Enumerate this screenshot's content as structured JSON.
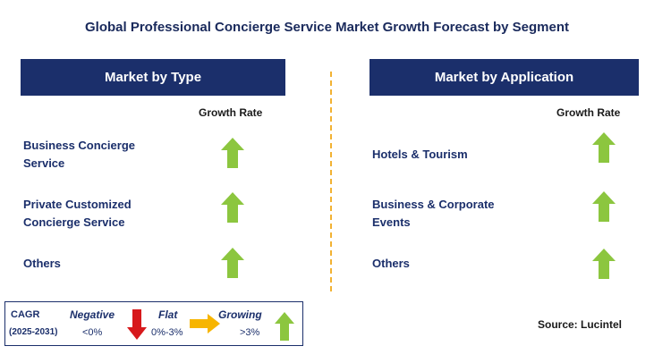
{
  "title": "Global Professional Concierge Service Market Growth Forecast by Segment",
  "left_panel": {
    "header": "Market by Type",
    "column_header": "Growth Rate",
    "rows": [
      {
        "label_line1": "Business Concierge",
        "label_line2": "Service",
        "trend": "growing"
      },
      {
        "label_line1": "Private Customized",
        "label_line2": "Concierge Service",
        "trend": "growing"
      },
      {
        "label_line1": "Others",
        "label_line2": "",
        "trend": "growing"
      }
    ]
  },
  "right_panel": {
    "header": "Market by Application",
    "column_header": "Growth Rate",
    "rows": [
      {
        "label_line1": "Hotels & Tourism",
        "label_line2": "",
        "trend": "growing"
      },
      {
        "label_line1": "Business & Corporate",
        "label_line2": "Events",
        "trend": "growing"
      },
      {
        "label_line1": "Others",
        "label_line2": "",
        "trend": "growing"
      }
    ]
  },
  "legend": {
    "cagr": "CAGR",
    "period": "(2025-2031)",
    "negative_label": "Negative",
    "negative_range": "<0%",
    "flat_label": "Flat",
    "flat_range": "0%-3%",
    "growing_label": "Growing",
    "growing_range": ">3%"
  },
  "source": "Source: Lucintel",
  "colors": {
    "header_bg": "#1b2f6b",
    "growing": "#8cc63f",
    "negative": "#d7191c",
    "flat": "#f7b500",
    "divider": "#f2b233"
  }
}
